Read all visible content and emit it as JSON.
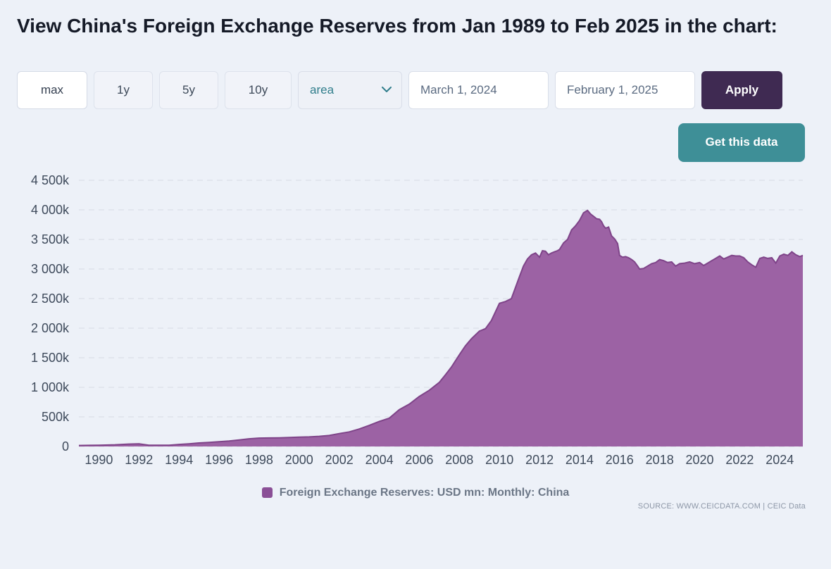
{
  "page": {
    "title": "View China's Foreign Exchange Reserves from Jan 1989 to Feb 2025 in the chart:"
  },
  "controls": {
    "range_buttons": [
      {
        "label": "max",
        "active": true
      },
      {
        "label": "1y",
        "active": false
      },
      {
        "label": "5y",
        "active": false
      },
      {
        "label": "10y",
        "active": false
      }
    ],
    "chart_type_select": {
      "value": "area"
    },
    "date_from": {
      "value": "March 1, 2024"
    },
    "date_to": {
      "value": "February 1, 2025"
    },
    "apply_label": "Apply",
    "get_data_label": "Get this data"
  },
  "chart_data": {
    "type": "area",
    "title": "",
    "xlabel": "",
    "ylabel": "",
    "unit": "USD mn (axis ticks in thousands, k = 1000 USD mn)",
    "ylim": [
      0,
      4500
    ],
    "x_range": [
      1989.0,
      2025.15
    ],
    "grid": "horizontal-dashed",
    "legend_position": "bottom-center",
    "y_ticks": [
      {
        "value": 0,
        "label": "0"
      },
      {
        "value": 500,
        "label": "500k"
      },
      {
        "value": 1000,
        "label": "1 000k"
      },
      {
        "value": 1500,
        "label": "1 500k"
      },
      {
        "value": 2000,
        "label": "2 000k"
      },
      {
        "value": 2500,
        "label": "2 500k"
      },
      {
        "value": 3000,
        "label": "3 000k"
      },
      {
        "value": 3500,
        "label": "3 500k"
      },
      {
        "value": 4000,
        "label": "4 000k"
      },
      {
        "value": 4500,
        "label": "4 500k"
      }
    ],
    "x_ticks": [
      1990,
      1992,
      1994,
      1996,
      1998,
      2000,
      2002,
      2004,
      2006,
      2008,
      2010,
      2012,
      2014,
      2016,
      2018,
      2020,
      2022,
      2024
    ],
    "series": [
      {
        "name": "Foreign Exchange Reserves: USD mn: Monthly: China",
        "points_unit": "x: decimal year, y: thousand USD mn",
        "points": [
          [
            1989.0,
            17
          ],
          [
            1990.0,
            22
          ],
          [
            1990.8,
            29
          ],
          [
            1991.5,
            40
          ],
          [
            1992.0,
            45
          ],
          [
            1992.5,
            22
          ],
          [
            1993.0,
            20
          ],
          [
            1993.5,
            22
          ],
          [
            1994.0,
            35
          ],
          [
            1994.5,
            45
          ],
          [
            1995.0,
            60
          ],
          [
            1995.5,
            68
          ],
          [
            1996.0,
            80
          ],
          [
            1996.5,
            92
          ],
          [
            1997.0,
            110
          ],
          [
            1997.5,
            130
          ],
          [
            1998.0,
            142
          ],
          [
            1998.5,
            144
          ],
          [
            1999.0,
            147
          ],
          [
            1999.5,
            152
          ],
          [
            2000.0,
            157
          ],
          [
            2000.5,
            162
          ],
          [
            2001.0,
            172
          ],
          [
            2001.5,
            186
          ],
          [
            2002.0,
            218
          ],
          [
            2002.5,
            246
          ],
          [
            2003.0,
            295
          ],
          [
            2003.5,
            356
          ],
          [
            2004.0,
            423
          ],
          [
            2004.5,
            478
          ],
          [
            2005.0,
            623
          ],
          [
            2005.5,
            716
          ],
          [
            2006.0,
            845
          ],
          [
            2006.5,
            950
          ],
          [
            2007.0,
            1085
          ],
          [
            2007.3,
            1210
          ],
          [
            2007.6,
            1340
          ],
          [
            2008.0,
            1550
          ],
          [
            2008.3,
            1700
          ],
          [
            2008.6,
            1820
          ],
          [
            2009.0,
            1950
          ],
          [
            2009.3,
            1990
          ],
          [
            2009.6,
            2130
          ],
          [
            2010.0,
            2420
          ],
          [
            2010.3,
            2450
          ],
          [
            2010.6,
            2500
          ],
          [
            2011.0,
            2870
          ],
          [
            2011.2,
            3050
          ],
          [
            2011.4,
            3170
          ],
          [
            2011.6,
            3240
          ],
          [
            2011.8,
            3270
          ],
          [
            2012.0,
            3200
          ],
          [
            2012.15,
            3310
          ],
          [
            2012.3,
            3300
          ],
          [
            2012.45,
            3240
          ],
          [
            2012.6,
            3270
          ],
          [
            2012.75,
            3290
          ],
          [
            2012.9,
            3310
          ],
          [
            2013.0,
            3330
          ],
          [
            2013.2,
            3440
          ],
          [
            2013.4,
            3500
          ],
          [
            2013.6,
            3660
          ],
          [
            2013.8,
            3730
          ],
          [
            2014.0,
            3820
          ],
          [
            2014.2,
            3950
          ],
          [
            2014.4,
            3990
          ],
          [
            2014.55,
            3930
          ],
          [
            2014.7,
            3890
          ],
          [
            2014.85,
            3850
          ],
          [
            2015.0,
            3840
          ],
          [
            2015.1,
            3800
          ],
          [
            2015.2,
            3730
          ],
          [
            2015.3,
            3690
          ],
          [
            2015.45,
            3710
          ],
          [
            2015.6,
            3560
          ],
          [
            2015.75,
            3510
          ],
          [
            2015.9,
            3430
          ],
          [
            2016.0,
            3230
          ],
          [
            2016.15,
            3200
          ],
          [
            2016.3,
            3210
          ],
          [
            2016.45,
            3190
          ],
          [
            2016.6,
            3160
          ],
          [
            2016.75,
            3120
          ],
          [
            2016.9,
            3050
          ],
          [
            2017.0,
            3000
          ],
          [
            2017.2,
            3010
          ],
          [
            2017.4,
            3050
          ],
          [
            2017.6,
            3090
          ],
          [
            2017.8,
            3110
          ],
          [
            2018.0,
            3160
          ],
          [
            2018.2,
            3140
          ],
          [
            2018.4,
            3110
          ],
          [
            2018.6,
            3120
          ],
          [
            2018.8,
            3050
          ],
          [
            2019.0,
            3090
          ],
          [
            2019.25,
            3100
          ],
          [
            2019.5,
            3120
          ],
          [
            2019.75,
            3090
          ],
          [
            2020.0,
            3110
          ],
          [
            2020.2,
            3060
          ],
          [
            2020.4,
            3100
          ],
          [
            2020.6,
            3140
          ],
          [
            2020.8,
            3180
          ],
          [
            2021.0,
            3220
          ],
          [
            2021.2,
            3170
          ],
          [
            2021.4,
            3200
          ],
          [
            2021.6,
            3230
          ],
          [
            2021.8,
            3220
          ],
          [
            2022.0,
            3220
          ],
          [
            2022.2,
            3190
          ],
          [
            2022.4,
            3120
          ],
          [
            2022.6,
            3070
          ],
          [
            2022.8,
            3030
          ],
          [
            2023.0,
            3180
          ],
          [
            2023.2,
            3200
          ],
          [
            2023.4,
            3180
          ],
          [
            2023.6,
            3190
          ],
          [
            2023.8,
            3100
          ],
          [
            2024.0,
            3220
          ],
          [
            2024.2,
            3250
          ],
          [
            2024.4,
            3230
          ],
          [
            2024.6,
            3290
          ],
          [
            2024.8,
            3240
          ],
          [
            2025.0,
            3210
          ],
          [
            2025.15,
            3230
          ]
        ]
      }
    ],
    "colors": {
      "area_fill": "#9c62a4",
      "area_stroke": "#7f4489",
      "legend_swatch": "#8a4f96",
      "grid": "#d6dbe4"
    }
  },
  "footer": {
    "source": "SOURCE: WWW.CEICDATA.COM | CEIC Data"
  }
}
